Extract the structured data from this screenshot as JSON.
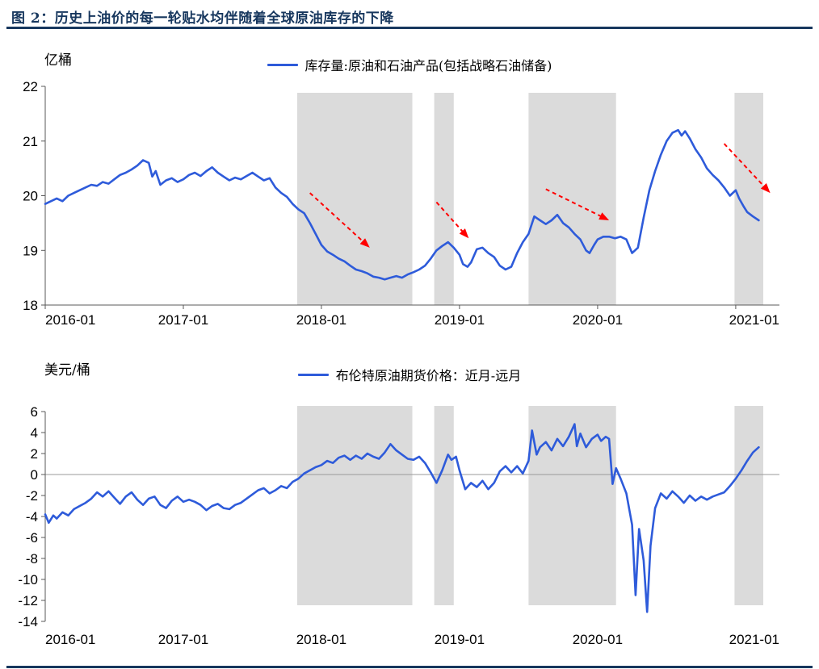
{
  "page": {
    "title": "图 2：历史上油价的每一轮贴水均伴随着全球原油库存的下降"
  },
  "colors": {
    "title": "#17375E",
    "rule": "#17375E",
    "line": "#2E5BDA",
    "band": "#DBDBDB",
    "arrow": "#FF0000",
    "axis": "#595959",
    "zero_line": "#999999"
  },
  "chart_data": [
    {
      "type": "line",
      "unit_label": "亿桶",
      "legend": "库存量:原油和石油产品(包括战略石油储备)",
      "ylim": [
        18,
        22
      ],
      "yticks": [
        22,
        21,
        20,
        19,
        18
      ],
      "x_unit": "months since 2016-01",
      "x_range_months": [
        0,
        63.8
      ],
      "x_tick_months": [
        0,
        12,
        24,
        36,
        48,
        60
      ],
      "x_tick_labels": [
        "2016-01",
        "2017-01",
        "2018-01",
        "2019-01",
        "2020-01",
        "2021-01"
      ],
      "zero_line": false,
      "x_axis_line": true,
      "bands_months": [
        [
          21.9,
          31.9
        ],
        [
          33.8,
          35.5
        ],
        [
          42.0,
          49.6
        ],
        [
          59.9,
          62.4
        ]
      ],
      "arrows": [
        {
          "from": [
            23.0,
            20.05
          ],
          "to": [
            28.2,
            19.05
          ]
        },
        {
          "from": [
            34.0,
            19.88
          ],
          "to": [
            36.8,
            19.22
          ]
        },
        {
          "from": [
            43.5,
            20.12
          ],
          "to": [
            49.0,
            19.55
          ]
        },
        {
          "from": [
            59.0,
            20.95
          ],
          "to": [
            63.0,
            20.05
          ]
        }
      ],
      "points": [
        [
          0,
          19.85
        ],
        [
          0.5,
          19.9
        ],
        [
          1,
          19.95
        ],
        [
          1.5,
          19.9
        ],
        [
          2,
          20.0
        ],
        [
          2.5,
          20.05
        ],
        [
          3,
          20.1
        ],
        [
          3.5,
          20.15
        ],
        [
          4,
          20.2
        ],
        [
          4.5,
          20.18
        ],
        [
          5,
          20.25
        ],
        [
          5.5,
          20.22
        ],
        [
          6,
          20.3
        ],
        [
          6.5,
          20.38
        ],
        [
          7,
          20.42
        ],
        [
          7.5,
          20.48
        ],
        [
          8,
          20.55
        ],
        [
          8.5,
          20.65
        ],
        [
          9,
          20.6
        ],
        [
          9.3,
          20.35
        ],
        [
          9.6,
          20.45
        ],
        [
          10,
          20.2
        ],
        [
          10.5,
          20.28
        ],
        [
          11,
          20.32
        ],
        [
          11.5,
          20.25
        ],
        [
          12,
          20.3
        ],
        [
          12.5,
          20.38
        ],
        [
          13,
          20.42
        ],
        [
          13.5,
          20.36
        ],
        [
          14,
          20.45
        ],
        [
          14.5,
          20.52
        ],
        [
          15,
          20.42
        ],
        [
          15.5,
          20.35
        ],
        [
          16,
          20.28
        ],
        [
          16.5,
          20.33
        ],
        [
          17,
          20.3
        ],
        [
          17.5,
          20.36
        ],
        [
          18,
          20.42
        ],
        [
          18.5,
          20.35
        ],
        [
          19,
          20.28
        ],
        [
          19.5,
          20.32
        ],
        [
          20,
          20.15
        ],
        [
          20.5,
          20.05
        ],
        [
          21,
          19.98
        ],
        [
          21.5,
          19.85
        ],
        [
          22,
          19.75
        ],
        [
          22.5,
          19.68
        ],
        [
          23,
          19.5
        ],
        [
          23.5,
          19.3
        ],
        [
          24,
          19.1
        ],
        [
          24.5,
          18.98
        ],
        [
          25,
          18.92
        ],
        [
          25.5,
          18.85
        ],
        [
          26,
          18.8
        ],
        [
          26.5,
          18.72
        ],
        [
          27,
          18.65
        ],
        [
          27.5,
          18.62
        ],
        [
          28,
          18.58
        ],
        [
          28.5,
          18.52
        ],
        [
          29,
          18.5
        ],
        [
          29.5,
          18.47
        ],
        [
          30,
          18.5
        ],
        [
          30.5,
          18.53
        ],
        [
          31,
          18.5
        ],
        [
          31.5,
          18.56
        ],
        [
          32,
          18.6
        ],
        [
          32.5,
          18.65
        ],
        [
          33,
          18.72
        ],
        [
          33.5,
          18.85
        ],
        [
          34,
          19.0
        ],
        [
          34.5,
          19.08
        ],
        [
          35,
          19.15
        ],
        [
          35.5,
          19.05
        ],
        [
          36,
          18.92
        ],
        [
          36.3,
          18.75
        ],
        [
          36.7,
          18.7
        ],
        [
          37,
          18.78
        ],
        [
          37.5,
          19.02
        ],
        [
          38,
          19.05
        ],
        [
          38.5,
          18.95
        ],
        [
          39,
          18.88
        ],
        [
          39.5,
          18.72
        ],
        [
          40,
          18.65
        ],
        [
          40.5,
          18.7
        ],
        [
          41,
          18.95
        ],
        [
          41.5,
          19.15
        ],
        [
          42,
          19.3
        ],
        [
          42.5,
          19.62
        ],
        [
          43,
          19.55
        ],
        [
          43.5,
          19.48
        ],
        [
          44,
          19.55
        ],
        [
          44.5,
          19.65
        ],
        [
          45,
          19.5
        ],
        [
          45.5,
          19.42
        ],
        [
          46,
          19.3
        ],
        [
          46.5,
          19.2
        ],
        [
          47,
          19.0
        ],
        [
          47.3,
          18.95
        ],
        [
          47.7,
          19.1
        ],
        [
          48,
          19.2
        ],
        [
          48.5,
          19.25
        ],
        [
          49,
          19.25
        ],
        [
          49.5,
          19.22
        ],
        [
          50,
          19.25
        ],
        [
          50.5,
          19.2
        ],
        [
          51,
          18.95
        ],
        [
          51.5,
          19.05
        ],
        [
          52,
          19.6
        ],
        [
          52.5,
          20.1
        ],
        [
          53,
          20.45
        ],
        [
          53.5,
          20.75
        ],
        [
          54,
          21.0
        ],
        [
          54.5,
          21.15
        ],
        [
          55,
          21.2
        ],
        [
          55.3,
          21.1
        ],
        [
          55.6,
          21.18
        ],
        [
          56,
          21.05
        ],
        [
          56.5,
          20.85
        ],
        [
          57,
          20.7
        ],
        [
          57.5,
          20.5
        ],
        [
          58,
          20.38
        ],
        [
          58.5,
          20.28
        ],
        [
          59,
          20.15
        ],
        [
          59.5,
          20.0
        ],
        [
          60,
          20.1
        ],
        [
          60.3,
          19.95
        ],
        [
          60.7,
          19.8
        ],
        [
          61,
          19.7
        ],
        [
          61.5,
          19.62
        ],
        [
          62,
          19.55
        ]
      ]
    },
    {
      "type": "line",
      "unit_label": "美元/桶",
      "legend": "布伦特原油期货价格：近月-远月",
      "ylim": [
        -14,
        6
      ],
      "yticks": [
        6,
        4,
        2,
        0,
        -2,
        -4,
        -6,
        -8,
        -10,
        -12,
        -14
      ],
      "x_unit": "months since 2016-01",
      "x_range_months": [
        0,
        63.8
      ],
      "x_tick_months": [
        0,
        12,
        24,
        36,
        48,
        60
      ],
      "x_tick_labels": [
        "2016-01",
        "2017-01",
        "2018-01",
        "2019-01",
        "2020-01",
        "2021-01"
      ],
      "zero_line": true,
      "x_axis_line": false,
      "bands_months": [
        [
          21.9,
          31.9
        ],
        [
          33.8,
          35.5
        ],
        [
          42.0,
          49.6
        ],
        [
          59.9,
          62.4
        ]
      ],
      "arrows": [],
      "points": [
        [
          0,
          -3.8
        ],
        [
          0.3,
          -4.6
        ],
        [
          0.7,
          -3.9
        ],
        [
          1,
          -4.2
        ],
        [
          1.5,
          -3.6
        ],
        [
          2,
          -3.9
        ],
        [
          2.5,
          -3.3
        ],
        [
          3,
          -3.0
        ],
        [
          3.5,
          -2.7
        ],
        [
          4,
          -2.3
        ],
        [
          4.5,
          -1.7
        ],
        [
          5,
          -2.1
        ],
        [
          5.5,
          -1.6
        ],
        [
          6,
          -2.2
        ],
        [
          6.5,
          -2.8
        ],
        [
          7,
          -2.1
        ],
        [
          7.5,
          -1.7
        ],
        [
          8,
          -2.4
        ],
        [
          8.5,
          -2.9
        ],
        [
          9,
          -2.3
        ],
        [
          9.5,
          -2.1
        ],
        [
          10,
          -2.9
        ],
        [
          10.5,
          -3.2
        ],
        [
          11,
          -2.5
        ],
        [
          11.5,
          -2.1
        ],
        [
          12,
          -2.6
        ],
        [
          12.5,
          -2.4
        ],
        [
          13,
          -2.6
        ],
        [
          13.5,
          -2.9
        ],
        [
          14,
          -3.4
        ],
        [
          14.5,
          -3.0
        ],
        [
          15,
          -2.8
        ],
        [
          15.5,
          -3.2
        ],
        [
          16,
          -3.3
        ],
        [
          16.5,
          -2.9
        ],
        [
          17,
          -2.7
        ],
        [
          17.5,
          -2.3
        ],
        [
          18,
          -1.9
        ],
        [
          18.5,
          -1.5
        ],
        [
          19,
          -1.3
        ],
        [
          19.5,
          -1.8
        ],
        [
          20,
          -1.5
        ],
        [
          20.5,
          -1.1
        ],
        [
          21,
          -1.3
        ],
        [
          21.5,
          -0.7
        ],
        [
          22,
          -0.4
        ],
        [
          22.5,
          0.1
        ],
        [
          23,
          0.4
        ],
        [
          23.5,
          0.7
        ],
        [
          24,
          0.9
        ],
        [
          24.5,
          1.3
        ],
        [
          25,
          1.1
        ],
        [
          25.5,
          1.6
        ],
        [
          26,
          1.8
        ],
        [
          26.5,
          1.4
        ],
        [
          27,
          1.8
        ],
        [
          27.5,
          1.5
        ],
        [
          28,
          2.0
        ],
        [
          28.5,
          1.7
        ],
        [
          29,
          1.5
        ],
        [
          29.5,
          2.1
        ],
        [
          30,
          2.9
        ],
        [
          30.5,
          2.3
        ],
        [
          31,
          1.9
        ],
        [
          31.5,
          1.5
        ],
        [
          32,
          1.4
        ],
        [
          32.5,
          1.7
        ],
        [
          33,
          1.1
        ],
        [
          33.5,
          0.2
        ],
        [
          34,
          -0.8
        ],
        [
          34.5,
          0.4
        ],
        [
          35,
          1.9
        ],
        [
          35.3,
          1.4
        ],
        [
          35.7,
          1.7
        ],
        [
          36,
          0.4
        ],
        [
          36.5,
          -1.4
        ],
        [
          37,
          -0.8
        ],
        [
          37.5,
          -1.2
        ],
        [
          38,
          -0.6
        ],
        [
          38.5,
          -1.4
        ],
        [
          39,
          -0.8
        ],
        [
          39.5,
          0.3
        ],
        [
          40,
          0.8
        ],
        [
          40.5,
          0.2
        ],
        [
          41,
          0.8
        ],
        [
          41.5,
          0.1
        ],
        [
          42,
          1.3
        ],
        [
          42.3,
          4.2
        ],
        [
          42.7,
          1.9
        ],
        [
          43,
          2.6
        ],
        [
          43.5,
          3.1
        ],
        [
          44,
          2.3
        ],
        [
          44.5,
          3.4
        ],
        [
          45,
          2.7
        ],
        [
          45.5,
          3.6
        ],
        [
          46,
          4.8
        ],
        [
          46.2,
          2.7
        ],
        [
          46.5,
          3.9
        ],
        [
          47,
          2.6
        ],
        [
          47.5,
          3.4
        ],
        [
          48,
          3.8
        ],
        [
          48.3,
          3.2
        ],
        [
          48.7,
          3.6
        ],
        [
          49,
          3.4
        ],
        [
          49.3,
          -0.9
        ],
        [
          49.6,
          0.6
        ],
        [
          50,
          -0.4
        ],
        [
          50.5,
          -1.8
        ],
        [
          51,
          -4.8
        ],
        [
          51.3,
          -11.5
        ],
        [
          51.6,
          -5.2
        ],
        [
          52,
          -8.2
        ],
        [
          52.3,
          -13.1
        ],
        [
          52.6,
          -6.8
        ],
        [
          53,
          -3.2
        ],
        [
          53.5,
          -1.8
        ],
        [
          54,
          -2.3
        ],
        [
          54.5,
          -1.6
        ],
        [
          55,
          -2.1
        ],
        [
          55.5,
          -2.7
        ],
        [
          56,
          -2.0
        ],
        [
          56.5,
          -2.5
        ],
        [
          57,
          -2.1
        ],
        [
          57.5,
          -2.4
        ],
        [
          58,
          -2.1
        ],
        [
          58.5,
          -1.9
        ],
        [
          59,
          -1.7
        ],
        [
          59.5,
          -1.1
        ],
        [
          60,
          -0.4
        ],
        [
          60.5,
          0.4
        ],
        [
          61,
          1.3
        ],
        [
          61.5,
          2.1
        ],
        [
          62,
          2.6
        ]
      ]
    }
  ]
}
